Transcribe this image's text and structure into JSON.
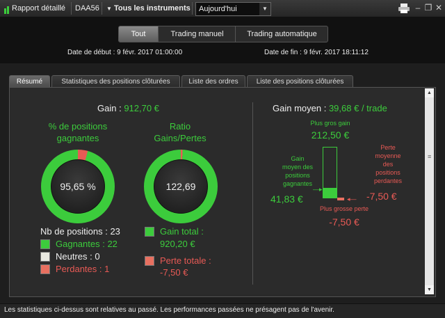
{
  "toolbar": {
    "report_label": "Rapport détaillé",
    "account": "DAA56",
    "instruments_label": "Tous les instruments",
    "period": "Aujourd'hui"
  },
  "header": {
    "segments": [
      "Tout",
      "Trading manuel",
      "Trading automatique"
    ],
    "active_segment": "Tout",
    "start_label": "Date de début :",
    "start_value": "9 févr. 2017 01:00:00",
    "end_label": "Date de fin :",
    "end_value": "9 févr. 2017 18:11:12"
  },
  "tabs": [
    "Résumé",
    "Statistiques des positions clôturées",
    "Liste des ordres",
    "Liste des positions clôturées"
  ],
  "summary": {
    "gain_label": "Gain :",
    "gain_value": "912,70 €",
    "win_pct_title_1": "% de positions",
    "win_pct_title_2": "gagnantes",
    "win_pct_value": "95,65 %",
    "win_pct_fraction": 0.9565,
    "ratio_title_1": "Ratio",
    "ratio_title_2": "Gains/Pertes",
    "ratio_value": "122,69",
    "ratio_fraction": 0.9919,
    "positions_label": "Nb de positions : 23",
    "winning_label": "Gagnantes : 22",
    "neutral_label": "Neutres : 0",
    "losing_label": "Perdantes : 1",
    "total_gain_label": "Gain total :",
    "total_gain_value": "920,20 €",
    "total_loss_label": "Perte totale :",
    "total_loss_value": "-7,50 €"
  },
  "average": {
    "title": "Gain moyen :",
    "value": "39,68 € / trade",
    "max_gain_label": "Plus gros gain",
    "max_gain_value": "212,50 €",
    "avg_win_label_1": "Gain",
    "avg_win_label_2": "moyen des",
    "avg_win_label_3": "positions",
    "avg_win_label_4": "gagnantes",
    "avg_win_value": "41,83 €",
    "avg_win_fraction": 0.197,
    "avg_loss_label_1": "Perte",
    "avg_loss_label_2": "moyenne",
    "avg_loss_label_3": "des",
    "avg_loss_label_4": "positions",
    "avg_loss_label_5": "perdantes",
    "avg_loss_value": "-7,50 €",
    "max_loss_label": "Plus grosse perte",
    "max_loss_value": "-7,50 €"
  },
  "footer": {
    "disclaimer": "Les statistiques ci-dessus sont relatives au passé. Les performances passées ne présagent pas de l'avenir."
  },
  "colors": {
    "green": "#3ccc3c",
    "red": "#e85a55"
  }
}
